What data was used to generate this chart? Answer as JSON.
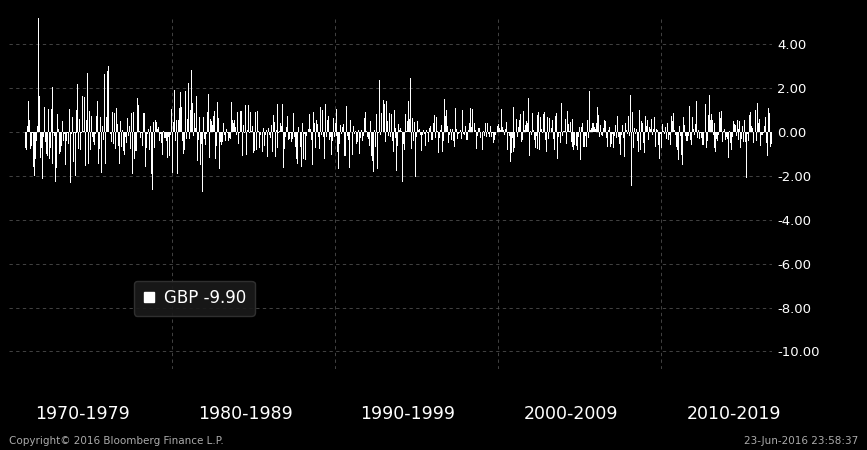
{
  "bg_color": "#000000",
  "bar_color": "#ffffff",
  "grid_color": "#555555",
  "text_color": "#ffffff",
  "footer_color": "#aaaaaa",
  "yticks": [
    4.0,
    2.0,
    0.0,
    -2.0,
    -4.0,
    -6.0,
    -8.0,
    -10.0
  ],
  "ylim": [
    -10.8,
    5.2
  ],
  "xlim": [
    1970.0,
    2016.8
  ],
  "decade_labels": [
    "1970-1979",
    "1980-1989",
    "1990-1999",
    "2000-2009",
    "2010-2019"
  ],
  "decade_label_years": [
    1974.5,
    1984.5,
    1994.5,
    2004.5,
    2014.5
  ],
  "legend_text": "GBP -9.90",
  "footer_left": "Copyright© 2016 Bloomberg Finance L.P.",
  "footer_right": "23-Jun-2016 23:58:37",
  "final_value": -9.9,
  "seed": 42,
  "n_per_year": 252,
  "start_year": 1971,
  "end_year": 2016
}
